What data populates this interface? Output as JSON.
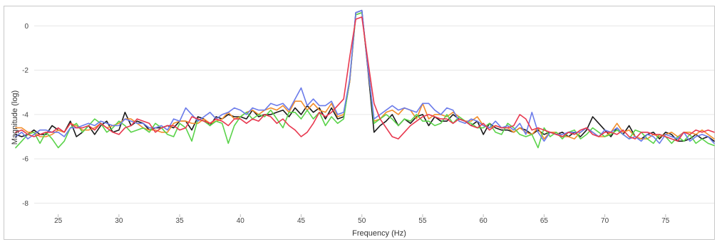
{
  "chart_data": {
    "type": "line",
    "title": "",
    "xlabel": "Frequency (Hz)",
    "ylabel": "Magnitude (log)",
    "xlim": [
      21.5,
      79
    ],
    "ylim": [
      -8.5,
      0.75
    ],
    "grid": "horizontal",
    "xticks": [
      25,
      30,
      35,
      40,
      45,
      50,
      55,
      60,
      65,
      70,
      75
    ],
    "yticks": [
      0,
      -2,
      -4,
      -6,
      -8
    ],
    "colors": [
      "#1a1a1a",
      "#f28e2b",
      "#5ad34a",
      "#6b7bea",
      "#e8384f"
    ],
    "series": [
      {
        "x": [
          21.5,
          22,
          22.5,
          23,
          23.5,
          24,
          24.5,
          25,
          25.5,
          26,
          26.5,
          27,
          27.5,
          28,
          28.5,
          29,
          29.5,
          30,
          30.5,
          31,
          31.5,
          32,
          32.5,
          33,
          33.5,
          34,
          34.5,
          35,
          35.5,
          36,
          36.5,
          37,
          37.5,
          38,
          38.5,
          39,
          39.5,
          40,
          40.5,
          41,
          41.5,
          42,
          42.5,
          43,
          43.5,
          44,
          44.5,
          45,
          45.5,
          46,
          46.5,
          47,
          47.5,
          48,
          48.5,
          49,
          49.5,
          50,
          50.5,
          51,
          51.5,
          52,
          52.5,
          53,
          53.5,
          54,
          54.5,
          55,
          55.5,
          56,
          56.5,
          57,
          57.5,
          58,
          58.5,
          59,
          59.5,
          60,
          60.5,
          61,
          61.5,
          62,
          62.5,
          63,
          63.5,
          64,
          64.5,
          65,
          65.5,
          66,
          66.5,
          67,
          67.5,
          68,
          68.5,
          69,
          69.5,
          70,
          70.5,
          71,
          71.5,
          72,
          72.5,
          73,
          73.5,
          74,
          74.5,
          75,
          75.5,
          76,
          76.5,
          77,
          77.5,
          78,
          78.5,
          79
        ],
        "y": [
          -4.9,
          -5.0,
          -4.9,
          -4.7,
          -4.9,
          -4.9,
          -4.5,
          -4.7,
          -4.8,
          -4.3,
          -5.0,
          -4.8,
          -4.5,
          -4.9,
          -4.5,
          -4.3,
          -4.8,
          -4.7,
          -3.9,
          -4.5,
          -4.3,
          -4.4,
          -4.7,
          -4.6,
          -4.6,
          -4.5,
          -4.6,
          -4.3,
          -4.3,
          -4.7,
          -4.1,
          -4.2,
          -4.5,
          -4.1,
          -4.2,
          -4.0,
          -4.1,
          -4.1,
          -4.2,
          -3.8,
          -4.1,
          -4.0,
          -4.0,
          -3.9,
          -3.8,
          -4.1,
          -3.7,
          -4.0,
          -3.6,
          -3.9,
          -3.7,
          -4.2,
          -3.7,
          -4.2,
          -4.1,
          -2.5,
          0.6,
          0.7,
          -2.0,
          -4.8,
          -4.5,
          -4.3,
          -4.0,
          -4.5,
          -4.2,
          -4.4,
          -4.1,
          -4.0,
          -4.5,
          -4.1,
          -4.3,
          -4.3,
          -4.0,
          -4.2,
          -4.3,
          -4.5,
          -4.3,
          -4.9,
          -4.4,
          -4.6,
          -4.7,
          -4.7,
          -4.8,
          -4.6,
          -4.7,
          -4.9,
          -4.7,
          -4.9,
          -4.8,
          -4.9,
          -4.8,
          -5.0,
          -4.8,
          -5.0,
          -4.7,
          -4.1,
          -4.4,
          -4.7,
          -5.0,
          -4.6,
          -4.9,
          -4.5,
          -5.0,
          -5.1,
          -4.9,
          -4.8,
          -5.1,
          -4.8,
          -4.9,
          -5.2,
          -5.2,
          -5.1,
          -4.9,
          -5.1,
          -5.0,
          -5.2
        ],
        "name": ""
      },
      {
        "x": [
          21.5,
          22,
          22.5,
          23,
          23.5,
          24,
          24.5,
          25,
          25.5,
          26,
          26.5,
          27,
          27.5,
          28,
          28.5,
          29,
          29.5,
          30,
          30.5,
          31,
          31.5,
          32,
          32.5,
          33,
          33.5,
          34,
          34.5,
          35,
          35.5,
          36,
          36.5,
          37,
          37.5,
          38,
          38.5,
          39,
          39.5,
          40,
          40.5,
          41,
          41.5,
          42,
          42.5,
          43,
          43.5,
          44,
          44.5,
          45,
          45.5,
          46,
          46.5,
          47,
          47.5,
          48,
          48.5,
          49,
          49.5,
          50,
          50.5,
          51,
          51.5,
          52,
          52.5,
          53,
          53.5,
          54,
          54.5,
          55,
          55.5,
          56,
          56.5,
          57,
          57.5,
          58,
          58.5,
          59,
          59.5,
          60,
          60.5,
          61,
          61.5,
          62,
          62.5,
          63,
          63.5,
          64,
          64.5,
          65,
          65.5,
          66,
          66.5,
          67,
          67.5,
          68,
          68.5,
          69,
          69.5,
          70,
          70.5,
          71,
          71.5,
          72,
          72.5,
          73,
          73.5,
          74,
          74.5,
          75,
          75.5,
          76,
          76.5,
          77,
          77.5,
          78,
          78.5,
          79
        ],
        "y": [
          -4.6,
          -4.6,
          -4.8,
          -4.8,
          -5.0,
          -5.0,
          -4.9,
          -4.7,
          -4.8,
          -4.4,
          -4.5,
          -4.7,
          -4.7,
          -4.6,
          -4.4,
          -4.6,
          -4.5,
          -4.4,
          -4.2,
          -4.2,
          -4.4,
          -4.6,
          -4.7,
          -4.7,
          -4.8,
          -4.8,
          -4.4,
          -4.3,
          -4.3,
          -4.4,
          -4.4,
          -4.2,
          -4.4,
          -4.3,
          -4.2,
          -3.9,
          -4.2,
          -4.1,
          -3.9,
          -3.8,
          -4.0,
          -3.8,
          -3.7,
          -3.8,
          -3.6,
          -3.9,
          -3.4,
          -3.4,
          -3.8,
          -3.5,
          -3.8,
          -3.9,
          -3.5,
          -4.1,
          -4.0,
          -2.5,
          0.5,
          0.6,
          -1.9,
          -4.3,
          -4.2,
          -3.9,
          -3.8,
          -4.0,
          -3.7,
          -3.8,
          -4.2,
          -3.5,
          -4.2,
          -4.0,
          -4.0,
          -4.1,
          -3.9,
          -4.1,
          -4.3,
          -4.3,
          -4.1,
          -4.5,
          -4.6,
          -4.5,
          -4.6,
          -4.6,
          -4.8,
          -4.6,
          -4.8,
          -4.9,
          -4.6,
          -5.1,
          -4.8,
          -4.8,
          -5.0,
          -5.0,
          -5.1,
          -4.8,
          -4.6,
          -4.8,
          -5.0,
          -5.0,
          -4.8,
          -4.4,
          -4.8,
          -4.7,
          -5.0,
          -5.1,
          -5.1,
          -4.9,
          -5.0,
          -4.9,
          -4.8,
          -5.0,
          -4.8,
          -4.8,
          -4.9,
          -4.7,
          -4.9,
          -5.1
        ],
        "name": ""
      },
      {
        "x": [
          21.5,
          22,
          22.5,
          23,
          23.5,
          24,
          24.5,
          25,
          25.5,
          26,
          26.5,
          27,
          27.5,
          28,
          28.5,
          29,
          29.5,
          30,
          30.5,
          31,
          31.5,
          32,
          32.5,
          33,
          33.5,
          34,
          34.5,
          35,
          35.5,
          36,
          36.5,
          37,
          37.5,
          38,
          38.5,
          39,
          39.5,
          40,
          40.5,
          41,
          41.5,
          42,
          42.5,
          43,
          43.5,
          44,
          44.5,
          45,
          45.5,
          46,
          46.5,
          47,
          47.5,
          48,
          48.5,
          49,
          49.5,
          50,
          50.5,
          51,
          51.5,
          52,
          52.5,
          53,
          53.5,
          54,
          54.5,
          55,
          55.5,
          56,
          56.5,
          57,
          57.5,
          58,
          58.5,
          59,
          59.5,
          60,
          60.5,
          61,
          61.5,
          62,
          62.5,
          63,
          63.5,
          64,
          64.5,
          65,
          65.5,
          66,
          66.5,
          67,
          67.5,
          68,
          68.5,
          69,
          69.5,
          70,
          70.5,
          71,
          71.5,
          72,
          72.5,
          73,
          73.5,
          74,
          74.5,
          75,
          75.5,
          76,
          76.5,
          77,
          77.5,
          78,
          78.5,
          79
        ],
        "y": [
          -5.5,
          -5.2,
          -4.9,
          -4.8,
          -5.3,
          -4.8,
          -5.1,
          -5.5,
          -5.2,
          -4.6,
          -4.4,
          -4.8,
          -4.5,
          -4.2,
          -4.4,
          -4.8,
          -4.6,
          -4.3,
          -4.5,
          -4.8,
          -4.7,
          -4.6,
          -4.8,
          -4.4,
          -4.6,
          -4.9,
          -5.0,
          -4.4,
          -4.6,
          -5.2,
          -4.2,
          -4.3,
          -4.5,
          -4.3,
          -4.4,
          -5.3,
          -4.5,
          -4.1,
          -3.9,
          -4.2,
          -4.0,
          -4.1,
          -3.8,
          -4.2,
          -4.6,
          -3.9,
          -3.9,
          -4.2,
          -3.8,
          -4.2,
          -3.9,
          -4.5,
          -4.1,
          -4.4,
          -4.2,
          -2.4,
          0.5,
          0.6,
          -1.8,
          -4.4,
          -4.2,
          -4.0,
          -4.2,
          -4.5,
          -4.2,
          -4.3,
          -4.0,
          -4.3,
          -4.3,
          -4.5,
          -4.4,
          -4.0,
          -4.4,
          -4.1,
          -4.3,
          -4.4,
          -4.6,
          -4.6,
          -4.4,
          -4.8,
          -4.9,
          -4.4,
          -4.6,
          -4.9,
          -5.0,
          -4.9,
          -5.5,
          -4.6,
          -5.0,
          -4.8,
          -5.1,
          -4.8,
          -4.7,
          -5.1,
          -4.9,
          -4.6,
          -4.8,
          -5.0,
          -4.9,
          -4.7,
          -4.9,
          -5.1,
          -4.7,
          -4.8,
          -5.1,
          -5.3,
          -4.9,
          -5.0,
          -5.3,
          -5.0,
          -5.2,
          -4.9,
          -5.3,
          -5.1,
          -5.3,
          -5.4
        ],
        "name": ""
      },
      {
        "x": [
          21.5,
          22,
          22.5,
          23,
          23.5,
          24,
          24.5,
          25,
          25.5,
          26,
          26.5,
          27,
          27.5,
          28,
          28.5,
          29,
          29.5,
          30,
          30.5,
          31,
          31.5,
          32,
          32.5,
          33,
          33.5,
          34,
          34.5,
          35,
          35.5,
          36,
          36.5,
          37,
          37.5,
          38,
          38.5,
          39,
          39.5,
          40,
          40.5,
          41,
          41.5,
          42,
          42.5,
          43,
          43.5,
          44,
          44.5,
          45,
          45.5,
          46,
          46.5,
          47,
          47.5,
          48,
          48.5,
          49,
          49.5,
          50,
          50.5,
          51,
          51.5,
          52,
          52.5,
          53,
          53.5,
          54,
          54.5,
          55,
          55.5,
          56,
          56.5,
          57,
          57.5,
          58,
          58.5,
          59,
          59.5,
          60,
          60.5,
          61,
          61.5,
          62,
          62.5,
          63,
          63.5,
          64,
          64.5,
          65,
          65.5,
          66,
          66.5,
          67,
          67.5,
          68,
          68.5,
          69,
          69.5,
          70,
          70.5,
          71,
          71.5,
          72,
          72.5,
          73,
          73.5,
          74,
          74.5,
          75,
          75.5,
          76,
          76.5,
          77,
          77.5,
          78,
          78.5,
          79
        ],
        "y": [
          -5.0,
          -4.8,
          -5.1,
          -4.9,
          -4.7,
          -4.7,
          -4.8,
          -4.8,
          -5.0,
          -4.6,
          -4.6,
          -4.5,
          -4.4,
          -4.5,
          -4.3,
          -4.4,
          -4.5,
          -4.5,
          -4.2,
          -4.3,
          -4.4,
          -4.4,
          -4.6,
          -4.6,
          -4.5,
          -4.7,
          -4.2,
          -4.3,
          -3.7,
          -4.0,
          -4.3,
          -4.1,
          -3.9,
          -4.2,
          -4.0,
          -3.9,
          -3.7,
          -3.8,
          -4.0,
          -3.7,
          -3.8,
          -3.8,
          -3.5,
          -3.6,
          -3.5,
          -3.8,
          -3.3,
          -2.8,
          -3.6,
          -3.3,
          -3.6,
          -3.6,
          -3.4,
          -4.0,
          -3.9,
          -2.4,
          0.6,
          0.7,
          -1.9,
          -4.2,
          -4.0,
          -3.8,
          -3.6,
          -3.8,
          -3.7,
          -3.8,
          -3.9,
          -3.5,
          -3.5,
          -3.8,
          -4.0,
          -3.7,
          -3.8,
          -4.3,
          -4.4,
          -4.2,
          -4.3,
          -4.5,
          -4.6,
          -4.3,
          -4.6,
          -4.5,
          -4.7,
          -4.4,
          -4.9,
          -3.9,
          -4.8,
          -5.2,
          -4.8,
          -4.9,
          -4.9,
          -4.8,
          -4.8,
          -4.8,
          -4.6,
          -4.8,
          -5.0,
          -4.7,
          -4.8,
          -4.6,
          -4.9,
          -5.1,
          -5.0,
          -5.2,
          -4.9,
          -5.0,
          -5.3,
          -4.9,
          -5.0,
          -5.1,
          -4.8,
          -5.2,
          -5.0,
          -4.9,
          -5.0,
          -5.3
        ],
        "name": ""
      },
      {
        "x": [
          21.5,
          22,
          22.5,
          23,
          23.5,
          24,
          24.5,
          25,
          25.5,
          26,
          26.5,
          27,
          27.5,
          28,
          28.5,
          29,
          29.5,
          30,
          30.5,
          31,
          31.5,
          32,
          32.5,
          33,
          33.5,
          34,
          34.5,
          35,
          35.5,
          36,
          36.5,
          37,
          37.5,
          38,
          38.5,
          39,
          39.5,
          40,
          40.5,
          41,
          41.5,
          42,
          42.5,
          43,
          43.5,
          44,
          44.5,
          45,
          45.5,
          46,
          46.5,
          47,
          47.5,
          48,
          48.5,
          49,
          49.5,
          50,
          50.5,
          51,
          51.5,
          52,
          52.5,
          53,
          53.5,
          54,
          54.5,
          55,
          55.5,
          56,
          56.5,
          57,
          57.5,
          58,
          58.5,
          59,
          59.5,
          60,
          60.5,
          61,
          61.5,
          62,
          62.5,
          63,
          63.5,
          64,
          64.5,
          65,
          65.5,
          66,
          66.5,
          67,
          67.5,
          68,
          68.5,
          69,
          69.5,
          70,
          70.5,
          71,
          71.5,
          72,
          72.5,
          73,
          73.5,
          74,
          74.5,
          75,
          75.5,
          76,
          76.5,
          77,
          77.5,
          78,
          78.5,
          79
        ],
        "y": [
          -4.8,
          -4.7,
          -4.9,
          -5.0,
          -4.9,
          -4.8,
          -4.8,
          -4.6,
          -4.8,
          -4.4,
          -4.6,
          -4.6,
          -4.5,
          -4.7,
          -4.4,
          -4.6,
          -4.8,
          -4.9,
          -4.6,
          -4.5,
          -4.2,
          -4.3,
          -4.4,
          -4.8,
          -4.6,
          -4.5,
          -4.5,
          -4.7,
          -4.6,
          -4.1,
          -4.2,
          -4.3,
          -4.4,
          -4.2,
          -4.3,
          -4.5,
          -4.2,
          -4.2,
          -4.4,
          -4.2,
          -4.3,
          -4.0,
          -4.1,
          -4.4,
          -4.2,
          -4.5,
          -4.7,
          -5.0,
          -4.8,
          -4.4,
          -3.9,
          -4.1,
          -3.9,
          -3.6,
          -3.3,
          -1.4,
          0.3,
          0.4,
          -1.6,
          -3.5,
          -4.2,
          -4.6,
          -5.0,
          -5.1,
          -4.8,
          -4.5,
          -4.3,
          -4.1,
          -4.0,
          -4.1,
          -4.2,
          -4.2,
          -4.4,
          -4.2,
          -4.3,
          -4.5,
          -4.6,
          -4.4,
          -4.7,
          -4.5,
          -4.6,
          -4.6,
          -4.5,
          -4.0,
          -4.2,
          -4.7,
          -4.6,
          -4.7,
          -4.8,
          -4.9,
          -5.0,
          -4.8,
          -4.9,
          -4.7,
          -4.6,
          -4.9,
          -5.0,
          -4.8,
          -4.8,
          -4.9,
          -4.7,
          -5.0,
          -5.1,
          -4.8,
          -4.8,
          -4.9,
          -4.9,
          -5.0,
          -5.1,
          -5.2,
          -4.8,
          -4.9,
          -4.7,
          -4.8,
          -4.7,
          -4.8
        ],
        "name": ""
      }
    ]
  }
}
